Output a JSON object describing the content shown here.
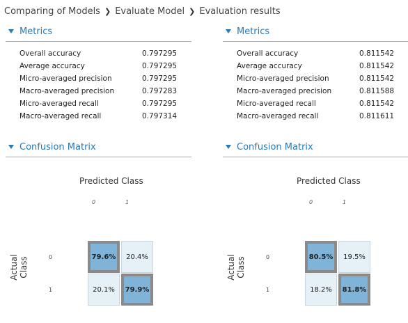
{
  "breadcrumb": {
    "items": [
      "Comparing of Models",
      "Evaluate Model",
      "Evaluation results"
    ]
  },
  "panels": [
    {
      "metrics_title": "Metrics",
      "metrics": [
        {
          "label": "Overall accuracy",
          "value": "0.797295"
        },
        {
          "label": "Average accuracy",
          "value": "0.797295"
        },
        {
          "label": "Micro-averaged precision",
          "value": "0.797295"
        },
        {
          "label": "Macro-averaged precision",
          "value": "0.797283"
        },
        {
          "label": "Micro-averaged recall",
          "value": "0.797295"
        },
        {
          "label": "Macro-averaged recall",
          "value": "0.797314"
        }
      ],
      "cm_title": "Confusion Matrix",
      "predicted_title": "Predicted Class",
      "actual_title": "Actual Class",
      "class_labels": [
        "0",
        "1"
      ],
      "matrix": [
        [
          "79.6%",
          "20.4%"
        ],
        [
          "20.1%",
          "79.9%"
        ]
      ]
    },
    {
      "metrics_title": "Metrics",
      "metrics": [
        {
          "label": "Overall accuracy",
          "value": "0.811542"
        },
        {
          "label": "Average accuracy",
          "value": "0.811542"
        },
        {
          "label": "Micro-averaged precision",
          "value": "0.811542"
        },
        {
          "label": "Macro-averaged precision",
          "value": "0.811588"
        },
        {
          "label": "Micro-averaged recall",
          "value": "0.811542"
        },
        {
          "label": "Macro-averaged recall",
          "value": "0.811611"
        }
      ],
      "cm_title": "Confusion Matrix",
      "predicted_title": "Predicted Class",
      "actual_title": "Actual Class",
      "class_labels": [
        "0",
        "1"
      ],
      "matrix": [
        [
          "80.5%",
          "19.5%"
        ],
        [
          "18.2%",
          "81.8%"
        ]
      ]
    }
  ],
  "colors": {
    "accent": "#2a79b7",
    "diag_cell": "#7fb4d8",
    "off_cell": "#e6f0f7",
    "diag_border": "#8a8a8a"
  }
}
